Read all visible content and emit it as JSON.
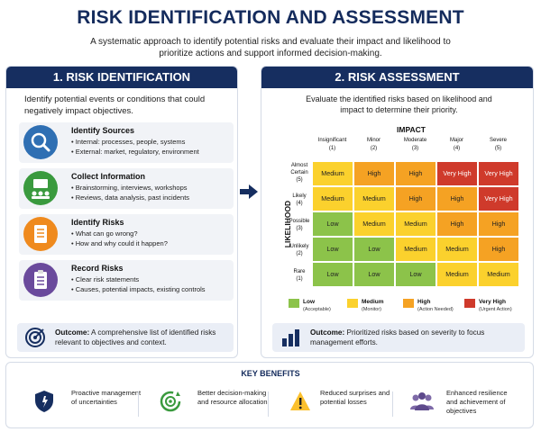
{
  "title": "RISK IDENTIFICATION AND ASSESSMENT",
  "subtitle": "A systematic approach to identify potential risks and evaluate their impact and likelihood to prioritize actions and support informed decision-making.",
  "left": {
    "heading": "1. RISK IDENTIFICATION",
    "intro": "Identify potential events or conditions that could negatively impact objectives.",
    "steps": [
      {
        "title": "Identify Sources",
        "icon": "magnifier-icon",
        "color": "#2f6fb3",
        "bullets": [
          "• Internal: processes, people, systems",
          "• External: market, regulatory, environment"
        ]
      },
      {
        "title": "Collect Information",
        "icon": "meeting-icon",
        "color": "#3a9a3e",
        "bullets": [
          "• Brainstorming, interviews, workshops",
          "• Reviews, data analysis, past incidents"
        ]
      },
      {
        "title": "Identify Risks",
        "icon": "checklist-icon",
        "color": "#ef8a1e",
        "bullets": [
          "• What can go wrong?",
          "• How and why could it happen?"
        ]
      },
      {
        "title": "Record Risks",
        "icon": "clipboard-icon",
        "color": "#6a4a9c",
        "bullets": [
          "• Clear risk statements",
          "• Causes, potential impacts, existing controls"
        ]
      }
    ],
    "outcome_label": "Outcome:",
    "outcome_text": "A comprehensive list of identified risks relevant to objectives and context."
  },
  "right": {
    "heading": "2. RISK ASSESSMENT",
    "intro": "Evaluate the identified risks based on likelihood and impact to determine their priority.",
    "impact_label": "IMPACT",
    "likelihood_label": "LIKELIHOOD",
    "impact_levels": [
      {
        "name": "Insignificant",
        "num": "(1)"
      },
      {
        "name": "Minor",
        "num": "(2)"
      },
      {
        "name": "Moderate",
        "num": "(3)"
      },
      {
        "name": "Major",
        "num": "(4)"
      },
      {
        "name": "Severe",
        "num": "(5)"
      }
    ],
    "likelihood_levels": [
      {
        "name": "Almost Certain",
        "num": "(5)"
      },
      {
        "name": "Likely",
        "num": "(4)"
      },
      {
        "name": "Possible",
        "num": "(3)"
      },
      {
        "name": "Unlikely",
        "num": "(2)"
      },
      {
        "name": "Rare",
        "num": "(1)"
      }
    ],
    "matrix": [
      [
        "Medium",
        "High",
        "High",
        "Very High",
        "Very High"
      ],
      [
        "Medium",
        "Medium",
        "High",
        "High",
        "Very High"
      ],
      [
        "Low",
        "Medium",
        "Medium",
        "High",
        "High"
      ],
      [
        "Low",
        "Low",
        "Medium",
        "Medium",
        "High"
      ],
      [
        "Low",
        "Low",
        "Low",
        "Medium",
        "Medium"
      ]
    ],
    "legend": [
      {
        "label": "Low",
        "note": "(Acceptable)",
        "color": "#8cc34a"
      },
      {
        "label": "Medium",
        "note": "(Monitor)",
        "color": "#fbd12d"
      },
      {
        "label": "High",
        "note": "(Action Needed)",
        "color": "#f5a223"
      },
      {
        "label": "Very High",
        "note": "(Urgent Action)",
        "color": "#cf3a2b"
      }
    ],
    "outcome_label": "Outcome:",
    "outcome_text": "Prioritized risks based on severity to focus management efforts."
  },
  "benefits": {
    "heading": "KEY BENEFITS",
    "items": [
      {
        "icon": "shield-icon",
        "text": "Proactive management of uncertainties"
      },
      {
        "icon": "target-refresh-icon",
        "text": "Better decision-making and resource allocation"
      },
      {
        "icon": "warning-icon",
        "text": "Reduced surprises and potential losses"
      },
      {
        "icon": "people-icon",
        "text": "Enhanced resilience and achievement of objectives"
      }
    ]
  },
  "colors": {
    "navy": "#162e60",
    "low": "#8cc34a",
    "medium": "#fbd12d",
    "high": "#f5a223",
    "very_high": "#cf3a2b"
  }
}
